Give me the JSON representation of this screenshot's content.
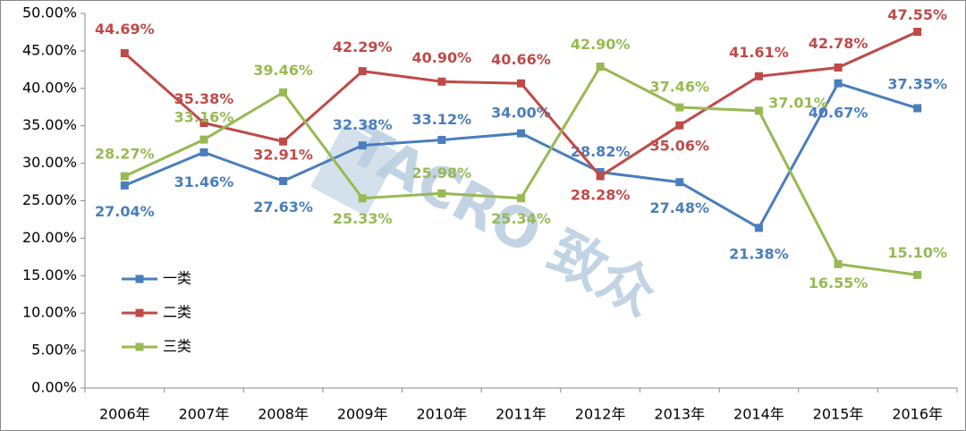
{
  "chart_data": {
    "type": "line",
    "categories": [
      "2006年",
      "2007年",
      "2008年",
      "2009年",
      "2010年",
      "2011年",
      "2012年",
      "2013年",
      "2014年",
      "2015年",
      "2016年"
    ],
    "series": [
      {
        "name": "一类",
        "color": "#4a7ebb",
        "values": [
          27.04,
          31.46,
          27.63,
          32.38,
          33.12,
          34.0,
          28.82,
          27.48,
          21.38,
          40.67,
          37.35
        ],
        "value_labels": [
          "27.04%",
          "31.46%",
          "27.63%",
          "32.38%",
          "33.12%",
          "34.00%",
          "28.82%",
          "27.48%",
          "21.38%",
          "40.67%",
          "37.35%"
        ]
      },
      {
        "name": "二类",
        "color": "#be4b48",
        "values": [
          44.69,
          35.38,
          32.91,
          42.29,
          40.9,
          40.66,
          28.28,
          35.06,
          41.61,
          42.78,
          47.55
        ],
        "value_labels": [
          "44.69%",
          "35.38%",
          "32.91%",
          "42.29%",
          "40.90%",
          "40.66%",
          "28.28%",
          "35.06%",
          "41.61%",
          "42.78%",
          "47.55%"
        ]
      },
      {
        "name": "三类",
        "color": "#98b954",
        "values": [
          28.27,
          33.16,
          39.46,
          25.33,
          25.98,
          25.34,
          42.9,
          37.46,
          37.01,
          16.55,
          15.1
        ],
        "value_labels": [
          "28.27%",
          "33.16%",
          "39.46%",
          "25.33%",
          "25.98%",
          "25.34%",
          "42.90%",
          "37.46%",
          "37.01%",
          "16.55%",
          "15.10%"
        ]
      }
    ],
    "ylim": [
      0,
      50
    ],
    "yticks": [
      {
        "value": 0,
        "label": "0.00%"
      },
      {
        "value": 5,
        "label": "5.00%"
      },
      {
        "value": 10,
        "label": "10.00%"
      },
      {
        "value": 15,
        "label": "15.00%"
      },
      {
        "value": 20,
        "label": "20.00%"
      },
      {
        "value": 25,
        "label": "25.00%"
      },
      {
        "value": 30,
        "label": "30.00%"
      },
      {
        "value": 35,
        "label": "35.00%"
      },
      {
        "value": 40,
        "label": "40.00%"
      },
      {
        "value": 45,
        "label": "45.00%"
      },
      {
        "value": 50,
        "label": "50.00%"
      }
    ],
    "grid": false,
    "legend": "left",
    "watermark": "TACRO 致众"
  }
}
